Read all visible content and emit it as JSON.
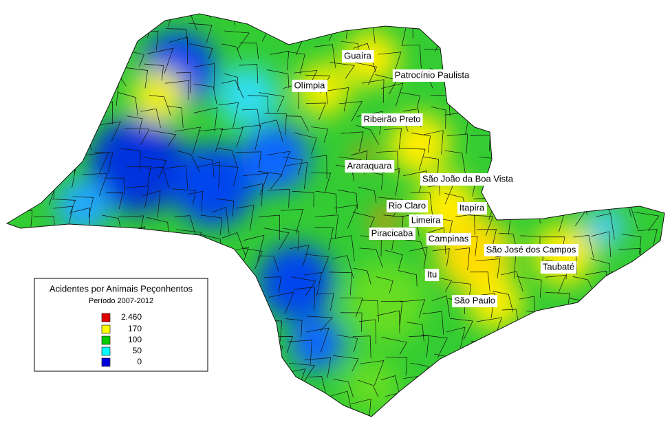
{
  "legend": {
    "title": "Acidentes por Animais Peçonhentos",
    "subtitle": "Período 2007-2012",
    "items": [
      {
        "value": 2460,
        "label": "2.460",
        "color": "#e00000"
      },
      {
        "value": 170,
        "color": "#ffff00"
      },
      {
        "value": 100,
        "color": "#00cc00"
      },
      {
        "value": 50,
        "color": "#00ffff"
      },
      {
        "value": 0,
        "color": "#0000dd"
      }
    ]
  },
  "cities": [
    "Guaíra",
    "Patrocínio Paulista",
    "Olímpia",
    "Ribeirão Preto",
    "Araraquara",
    "São João da Boa Vista",
    "Rio Claro",
    "Itapira",
    "Limeira",
    "Piracicaba",
    "Campinas",
    "São José dos Campos",
    "Taubaté",
    "Itu",
    "São Paulo"
  ]
}
